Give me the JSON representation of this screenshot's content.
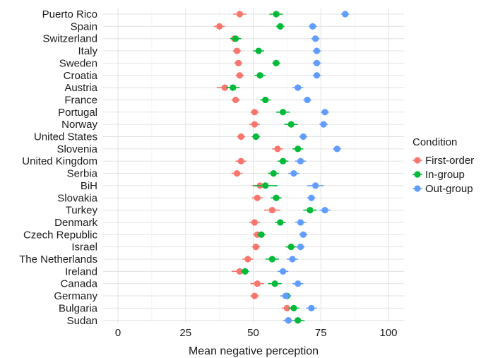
{
  "chart_data": {
    "type": "scatter",
    "xlabel": "Mean negative perception",
    "xlim": [
      -5,
      105
    ],
    "x_ticks": [
      "0",
      "25",
      "50",
      "75",
      "100"
    ],
    "x_tick_values": [
      0,
      25,
      50,
      75,
      100
    ],
    "grid": true,
    "legend": {
      "title": "Condition",
      "placement": "right"
    },
    "categories": [
      "Puerto Rico",
      "Spain",
      "Switzerland",
      "Italy",
      "Sweden",
      "Croatia",
      "Austria",
      "France",
      "Portugal",
      "Norway",
      "United States",
      "Slovenia",
      "United Kingdom",
      "Serbia",
      "BiH",
      "Slovakia",
      "Turkey",
      "Denmark",
      "Czech Republic",
      "Israel",
      "The Netherlands",
      "Ireland",
      "Canada",
      "Germany",
      "Bulgaria",
      "Sudan"
    ],
    "series": [
      {
        "name": "First-order",
        "color": "#F8766D",
        "values": [
          45,
          37.5,
          43,
          44,
          44.5,
          45,
          39.5,
          43.5,
          50.5,
          50.5,
          45.5,
          59,
          45.5,
          44,
          52.5,
          51.5,
          57,
          50.5,
          51.5,
          51,
          48,
          45,
          51.5,
          50.5,
          62.5,
          63
        ],
        "errors": [
          2.5,
          2,
          1.5,
          1.5,
          1.5,
          1.5,
          3,
          1.5,
          1.5,
          2,
          1.5,
          2,
          2,
          2,
          3,
          2,
          3,
          2,
          1.5,
          1.5,
          2,
          3,
          2.5,
          1.5,
          2,
          1.5
        ]
      },
      {
        "name": "In-group",
        "color": "#00BA38",
        "values": [
          58.5,
          60,
          43.5,
          52,
          58.5,
          52.5,
          42.5,
          54.5,
          61,
          64,
          51,
          66.5,
          61,
          57.5,
          54.5,
          58.5,
          71,
          60,
          53,
          64,
          57,
          47,
          58,
          62.5,
          65,
          66.5
        ],
        "errors": [
          2.5,
          1.5,
          2,
          2,
          1.5,
          2,
          2.5,
          2,
          2.5,
          2.5,
          1.5,
          2,
          2,
          2,
          4.5,
          2,
          2.5,
          2,
          1.5,
          2,
          2.5,
          1.5,
          2.5,
          1.5,
          2,
          2.5
        ]
      },
      {
        "name": "Out-group",
        "color": "#619CFF",
        "values": [
          84,
          72,
          73,
          73.5,
          73.5,
          73.5,
          66.5,
          70,
          76.5,
          76,
          68.5,
          81,
          67.5,
          65,
          73,
          71.5,
          76.5,
          67.5,
          68.5,
          67.5,
          64.5,
          61,
          66.5,
          62,
          71.5,
          63
        ],
        "errors": [
          1.5,
          1.5,
          1.5,
          1.5,
          1.5,
          1.5,
          2,
          1.5,
          1.5,
          1.5,
          1.5,
          1.5,
          2,
          2,
          3,
          1.5,
          2,
          2,
          1.5,
          1.5,
          2,
          2,
          2,
          2,
          2,
          2
        ]
      }
    ]
  }
}
